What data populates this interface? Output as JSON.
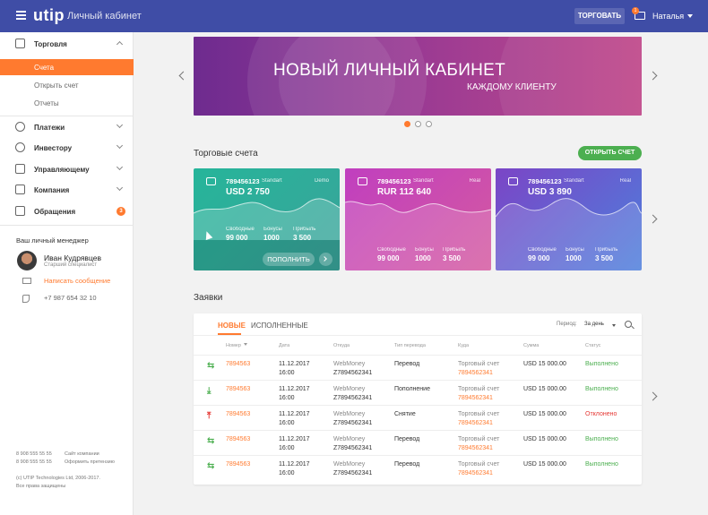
{
  "header": {
    "logo": "utip",
    "app_title": "Личный кабинет",
    "trade_button": "ТОРГОВАТЬ",
    "mail_badge": "1",
    "user_name": "Наталья"
  },
  "sidebar": {
    "items": [
      {
        "label": "Торговля",
        "icon": "chart-icon"
      },
      {
        "label": "Платежи",
        "icon": "dollar-icon"
      },
      {
        "label": "Инвестору",
        "icon": "investor-icon"
      },
      {
        "label": "Управляющему",
        "icon": "briefcase-icon"
      },
      {
        "label": "Компания",
        "icon": "bank-icon"
      },
      {
        "label": "Обращения",
        "icon": "chat-icon",
        "badge": "3"
      }
    ],
    "sub_items": [
      "Счета",
      "Открыть счет",
      "Отчеты"
    ],
    "manager": {
      "title": "Ваш личный менеджер",
      "name": "Иван Кудрявцев",
      "role": "Старший специалист",
      "message_link": "Написать сообщение",
      "phone": "+7 987 654 32 10"
    },
    "footer": {
      "phone1": "8 908 555 55 55",
      "phone2": "8 908 555 55 55",
      "site_link": "Сайт компании",
      "claim_link": "Оформить претензию",
      "copyright": "(c) UTIP Technologies Ltd, 2006-2017.",
      "rights": "Все права защищены"
    }
  },
  "banner": {
    "title": "НОВЫЙ ЛИЧНЫЙ КАБИНЕТ",
    "subtitle": "КАЖДОМУ КЛИЕНТУ",
    "slides": 3,
    "active_slide": 1
  },
  "accounts": {
    "title": "Торговые счета",
    "open_button": "ОТКРЫТЬ СЧЕТ",
    "stat_labels": [
      "Свободные",
      "Бонусы",
      "Прибыль"
    ],
    "replenish_button": "ПОПОЛНИТЬ",
    "cards": [
      {
        "number": "789456123",
        "type": "Standart",
        "mode": "Demo",
        "balance": "USD 2 750",
        "free": "99 000",
        "bonus": "1000",
        "profit": "3 500",
        "color_from": "#26b59a",
        "color_to": "#3aa39a"
      },
      {
        "number": "789456123",
        "type": "Standart",
        "mode": "Real",
        "balance": "RUR 112 640",
        "free": "99 000",
        "bonus": "1000",
        "profit": "3 500",
        "color_from": "#c03fbf",
        "color_to": "#d55aa0"
      },
      {
        "number": "789456123",
        "type": "Standart",
        "mode": "Real",
        "balance": "USD 3 890",
        "free": "99 000",
        "bonus": "1000",
        "profit": "3 500",
        "color_from": "#7b45c6",
        "color_to": "#4d7fdc"
      }
    ]
  },
  "requests": {
    "title": "Заявки",
    "tabs": [
      "НОВЫЕ",
      "ИСПОЛНЕННЫЕ"
    ],
    "period_label": "Период:",
    "period_value": "За день",
    "columns": [
      "Номер",
      "Дата",
      "Откуда",
      "Тип перевода",
      "Куда",
      "Сумма",
      "Статус"
    ],
    "rows": [
      {
        "icon": "transfer-icon",
        "number": "7894563",
        "date": "11.12.2017",
        "time": "16:00",
        "from_name": "WebMoney",
        "from_acc": "Z7894562341",
        "type": "Перевод",
        "to_name": "Торговый счет",
        "to_acc": "7894562341",
        "amount": "USD 15 000.00",
        "status": "Выполнено",
        "status_kind": "ok"
      },
      {
        "icon": "deposit-icon",
        "number": "7894563",
        "date": "11.12.2017",
        "time": "16:00",
        "from_name": "WebMoney",
        "from_acc": "Z7894562341",
        "type": "Пополнение",
        "to_name": "Торговый счет",
        "to_acc": "7894562341",
        "amount": "USD 15 000.00",
        "status": "Выполнено",
        "status_kind": "ok"
      },
      {
        "icon": "withdraw-icon",
        "number": "7894563",
        "date": "11.12.2017",
        "time": "16:00",
        "from_name": "WebMoney",
        "from_acc": "Z7894562341",
        "type": "Снятие",
        "to_name": "Торговый счет",
        "to_acc": "7894562341",
        "amount": "USD 15 000.00",
        "status": "Отклонено",
        "status_kind": "fail"
      },
      {
        "icon": "transfer-icon",
        "number": "7894563",
        "date": "11.12.2017",
        "time": "16:00",
        "from_name": "WebMoney",
        "from_acc": "Z7894562341",
        "type": "Перевод",
        "to_name": "Торговый счет",
        "to_acc": "7894562341",
        "amount": "USD 15 000.00",
        "status": "Выполнено",
        "status_kind": "ok"
      },
      {
        "icon": "transfer-icon",
        "number": "7894563",
        "date": "11.12.2017",
        "time": "16:00",
        "from_name": "WebMoney",
        "from_acc": "Z7894562341",
        "type": "Перевод",
        "to_name": "Торговый счет",
        "to_acc": "7894562341",
        "amount": "USD 15 000.00",
        "status": "Выполнено",
        "status_kind": "ok"
      }
    ]
  },
  "colors": {
    "header": "#3f4da6",
    "accent": "#ff7a2f",
    "success": "#4caf50",
    "danger": "#e53935"
  }
}
